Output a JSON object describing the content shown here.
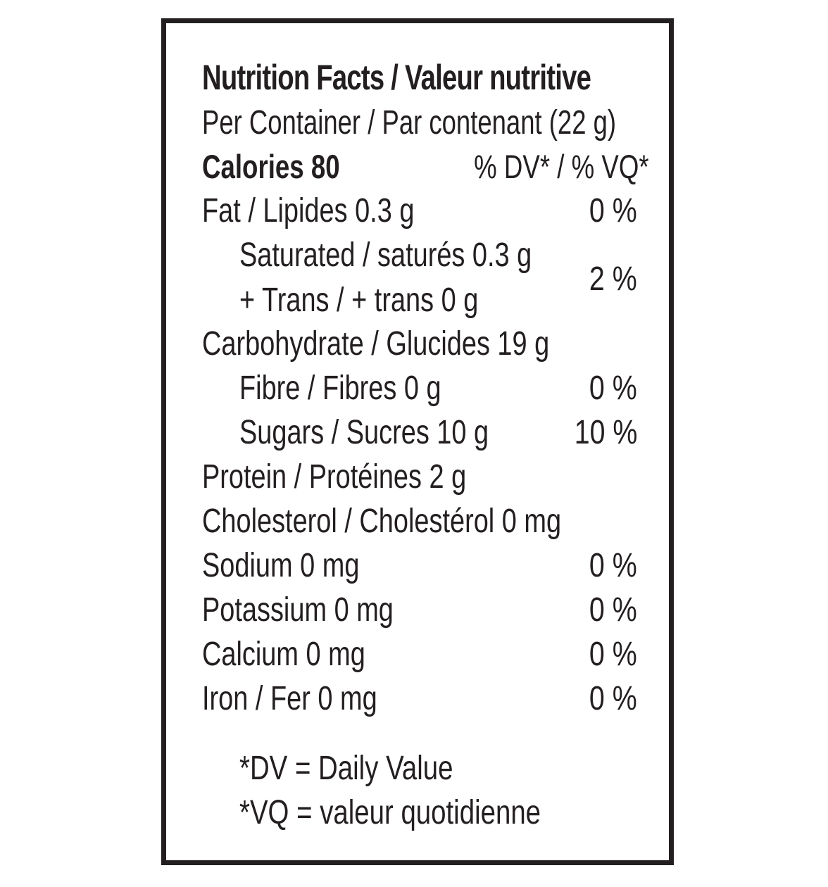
{
  "label": {
    "title": "Nutrition Facts / Valeur nutritive",
    "serving": "Per Container / Par contenant (22 g)",
    "calories": "Calories 80",
    "dv_header": "% DV* / % VQ*",
    "nutrients": [
      {
        "name": "Fat / Lipides 0.3 g",
        "dv": "0 %"
      },
      {
        "name": "Saturated / saturés 0.3 g"
      },
      {
        "name": "+ Trans / + trans 0 g",
        "dv": "2 %"
      },
      {
        "name": "Carbohydrate / Glucides 19 g"
      },
      {
        "name": "Fibre / Fibres 0 g",
        "dv": "0 %"
      },
      {
        "name": "Sugars / Sucres 10 g",
        "dv": "10 %"
      },
      {
        "name": "Protein / Protéines 2 g"
      },
      {
        "name": "Cholesterol / Cholestérol 0 mg"
      },
      {
        "name": "Sodium 0 mg",
        "dv": "0 %"
      },
      {
        "name": "Potassium 0 mg",
        "dv": "0 %"
      },
      {
        "name": "Calcium 0 mg",
        "dv": "0 %"
      },
      {
        "name": "Iron / Fer 0 mg",
        "dv": "0 %"
      }
    ],
    "footnotes": [
      "*DV = Daily Value",
      "*VQ = valeur quotidienne"
    ]
  }
}
